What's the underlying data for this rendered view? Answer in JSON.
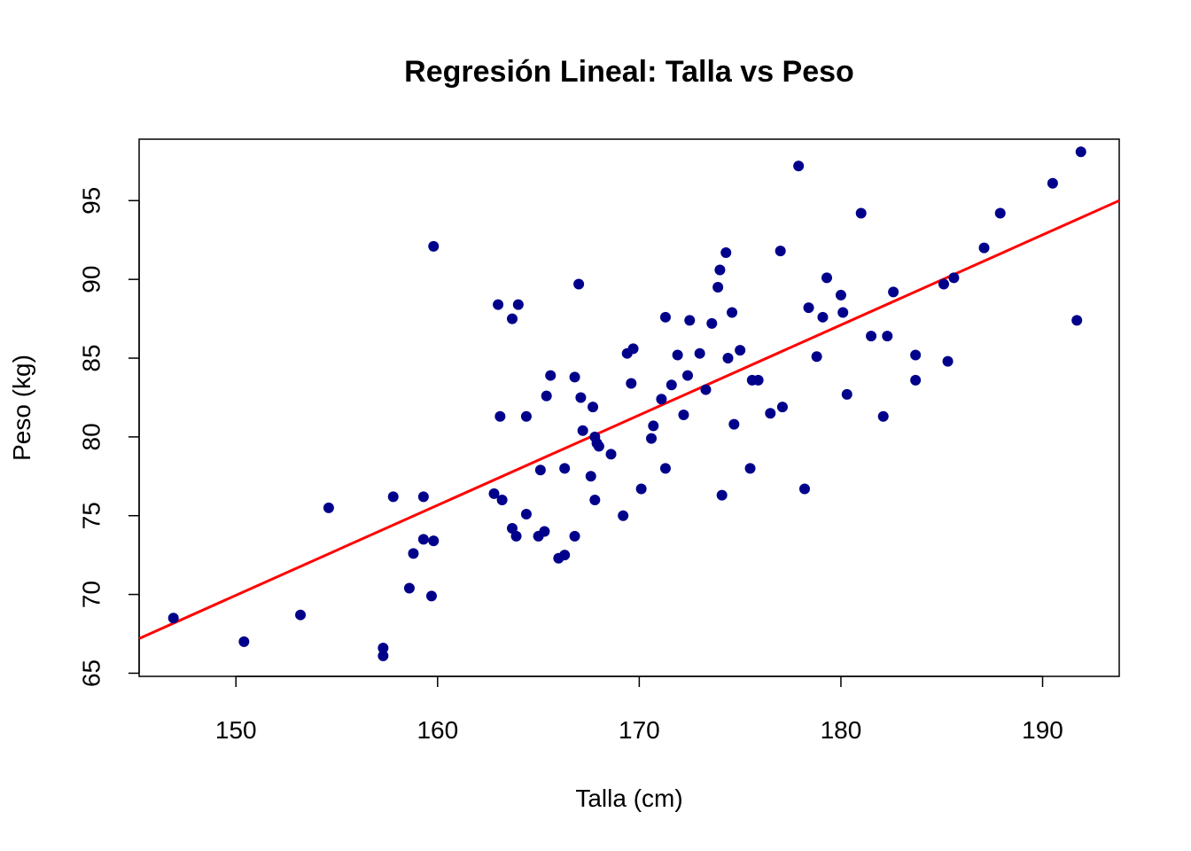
{
  "chart_data": {
    "type": "scatter",
    "title": "Regresión Lineal: Talla vs Peso",
    "xlabel": "Talla (cm)",
    "ylabel": "Peso (kg)",
    "xlim": [
      145.2,
      193.8
    ],
    "ylim": [
      64.8,
      98.9
    ],
    "xticks": [
      150,
      160,
      170,
      180,
      190
    ],
    "yticks": [
      65,
      70,
      75,
      80,
      85,
      90,
      95
    ],
    "grid": false,
    "points_color": "#00008B",
    "line_color": "#FF0000",
    "regression_line": {
      "x": [
        145.2,
        193.8
      ],
      "y": [
        67.2,
        95.0
      ]
    },
    "series": [
      {
        "x": [
          146.9,
          150.4,
          153.2,
          154.6,
          157.3,
          157.3,
          157.8,
          158.6,
          158.8,
          159.3,
          159.3,
          159.7,
          159.8,
          159.8,
          162.8,
          163.0,
          163.1,
          163.2,
          163.7,
          163.7,
          163.9,
          164.0,
          164.4,
          164.4,
          165.0,
          165.1,
          165.3,
          165.4,
          165.6,
          166.0,
          166.3,
          166.3,
          166.8,
          166.8,
          167.0,
          167.1,
          167.2,
          167.6,
          167.7,
          167.8,
          167.8,
          167.9,
          168.0,
          168.6,
          169.2,
          169.4,
          169.6,
          169.7,
          170.1,
          170.6,
          170.7,
          171.1,
          171.3,
          171.3,
          171.6,
          171.9,
          172.2,
          172.4,
          172.5,
          173.0,
          173.3,
          173.6,
          173.9,
          174.0,
          174.1,
          174.3,
          174.4,
          174.6,
          174.7,
          175.0,
          175.5,
          175.6,
          175.9,
          176.5,
          177.0,
          177.1,
          177.9,
          178.2,
          178.4,
          178.8,
          179.1,
          179.3,
          180.0,
          180.1,
          180.3,
          181.0,
          181.5,
          182.1,
          182.3,
          182.6,
          183.7,
          183.7,
          185.1,
          185.3,
          185.6,
          187.1,
          187.9,
          190.5,
          191.7,
          191.9
        ],
        "y": [
          68.5,
          67.0,
          68.7,
          75.5,
          66.6,
          66.1,
          76.2,
          70.4,
          72.6,
          73.5,
          76.2,
          69.9,
          73.4,
          92.1,
          76.4,
          88.4,
          81.3,
          76.0,
          74.2,
          87.5,
          73.7,
          88.4,
          81.3,
          75.1,
          73.7,
          77.9,
          74.0,
          82.6,
          83.9,
          72.3,
          72.5,
          78.0,
          73.7,
          83.8,
          89.7,
          82.5,
          80.4,
          77.5,
          81.9,
          76.0,
          80.0,
          79.6,
          79.4,
          78.9,
          75.0,
          85.3,
          83.4,
          85.6,
          76.7,
          79.9,
          80.7,
          82.4,
          87.6,
          78.0,
          83.3,
          85.2,
          81.4,
          83.9,
          87.4,
          85.3,
          83.0,
          87.2,
          89.5,
          90.6,
          76.3,
          91.7,
          85.0,
          87.9,
          80.8,
          85.5,
          78.0,
          83.6,
          83.6,
          81.5,
          91.8,
          81.9,
          97.2,
          76.7,
          88.2,
          85.1,
          87.6,
          90.1,
          89.0,
          87.9,
          82.7,
          94.2,
          86.4,
          81.3,
          86.4,
          89.2,
          83.6,
          85.2,
          89.7,
          84.8,
          90.1,
          92.0,
          94.2,
          96.1,
          87.4,
          98.1
        ]
      }
    ]
  }
}
